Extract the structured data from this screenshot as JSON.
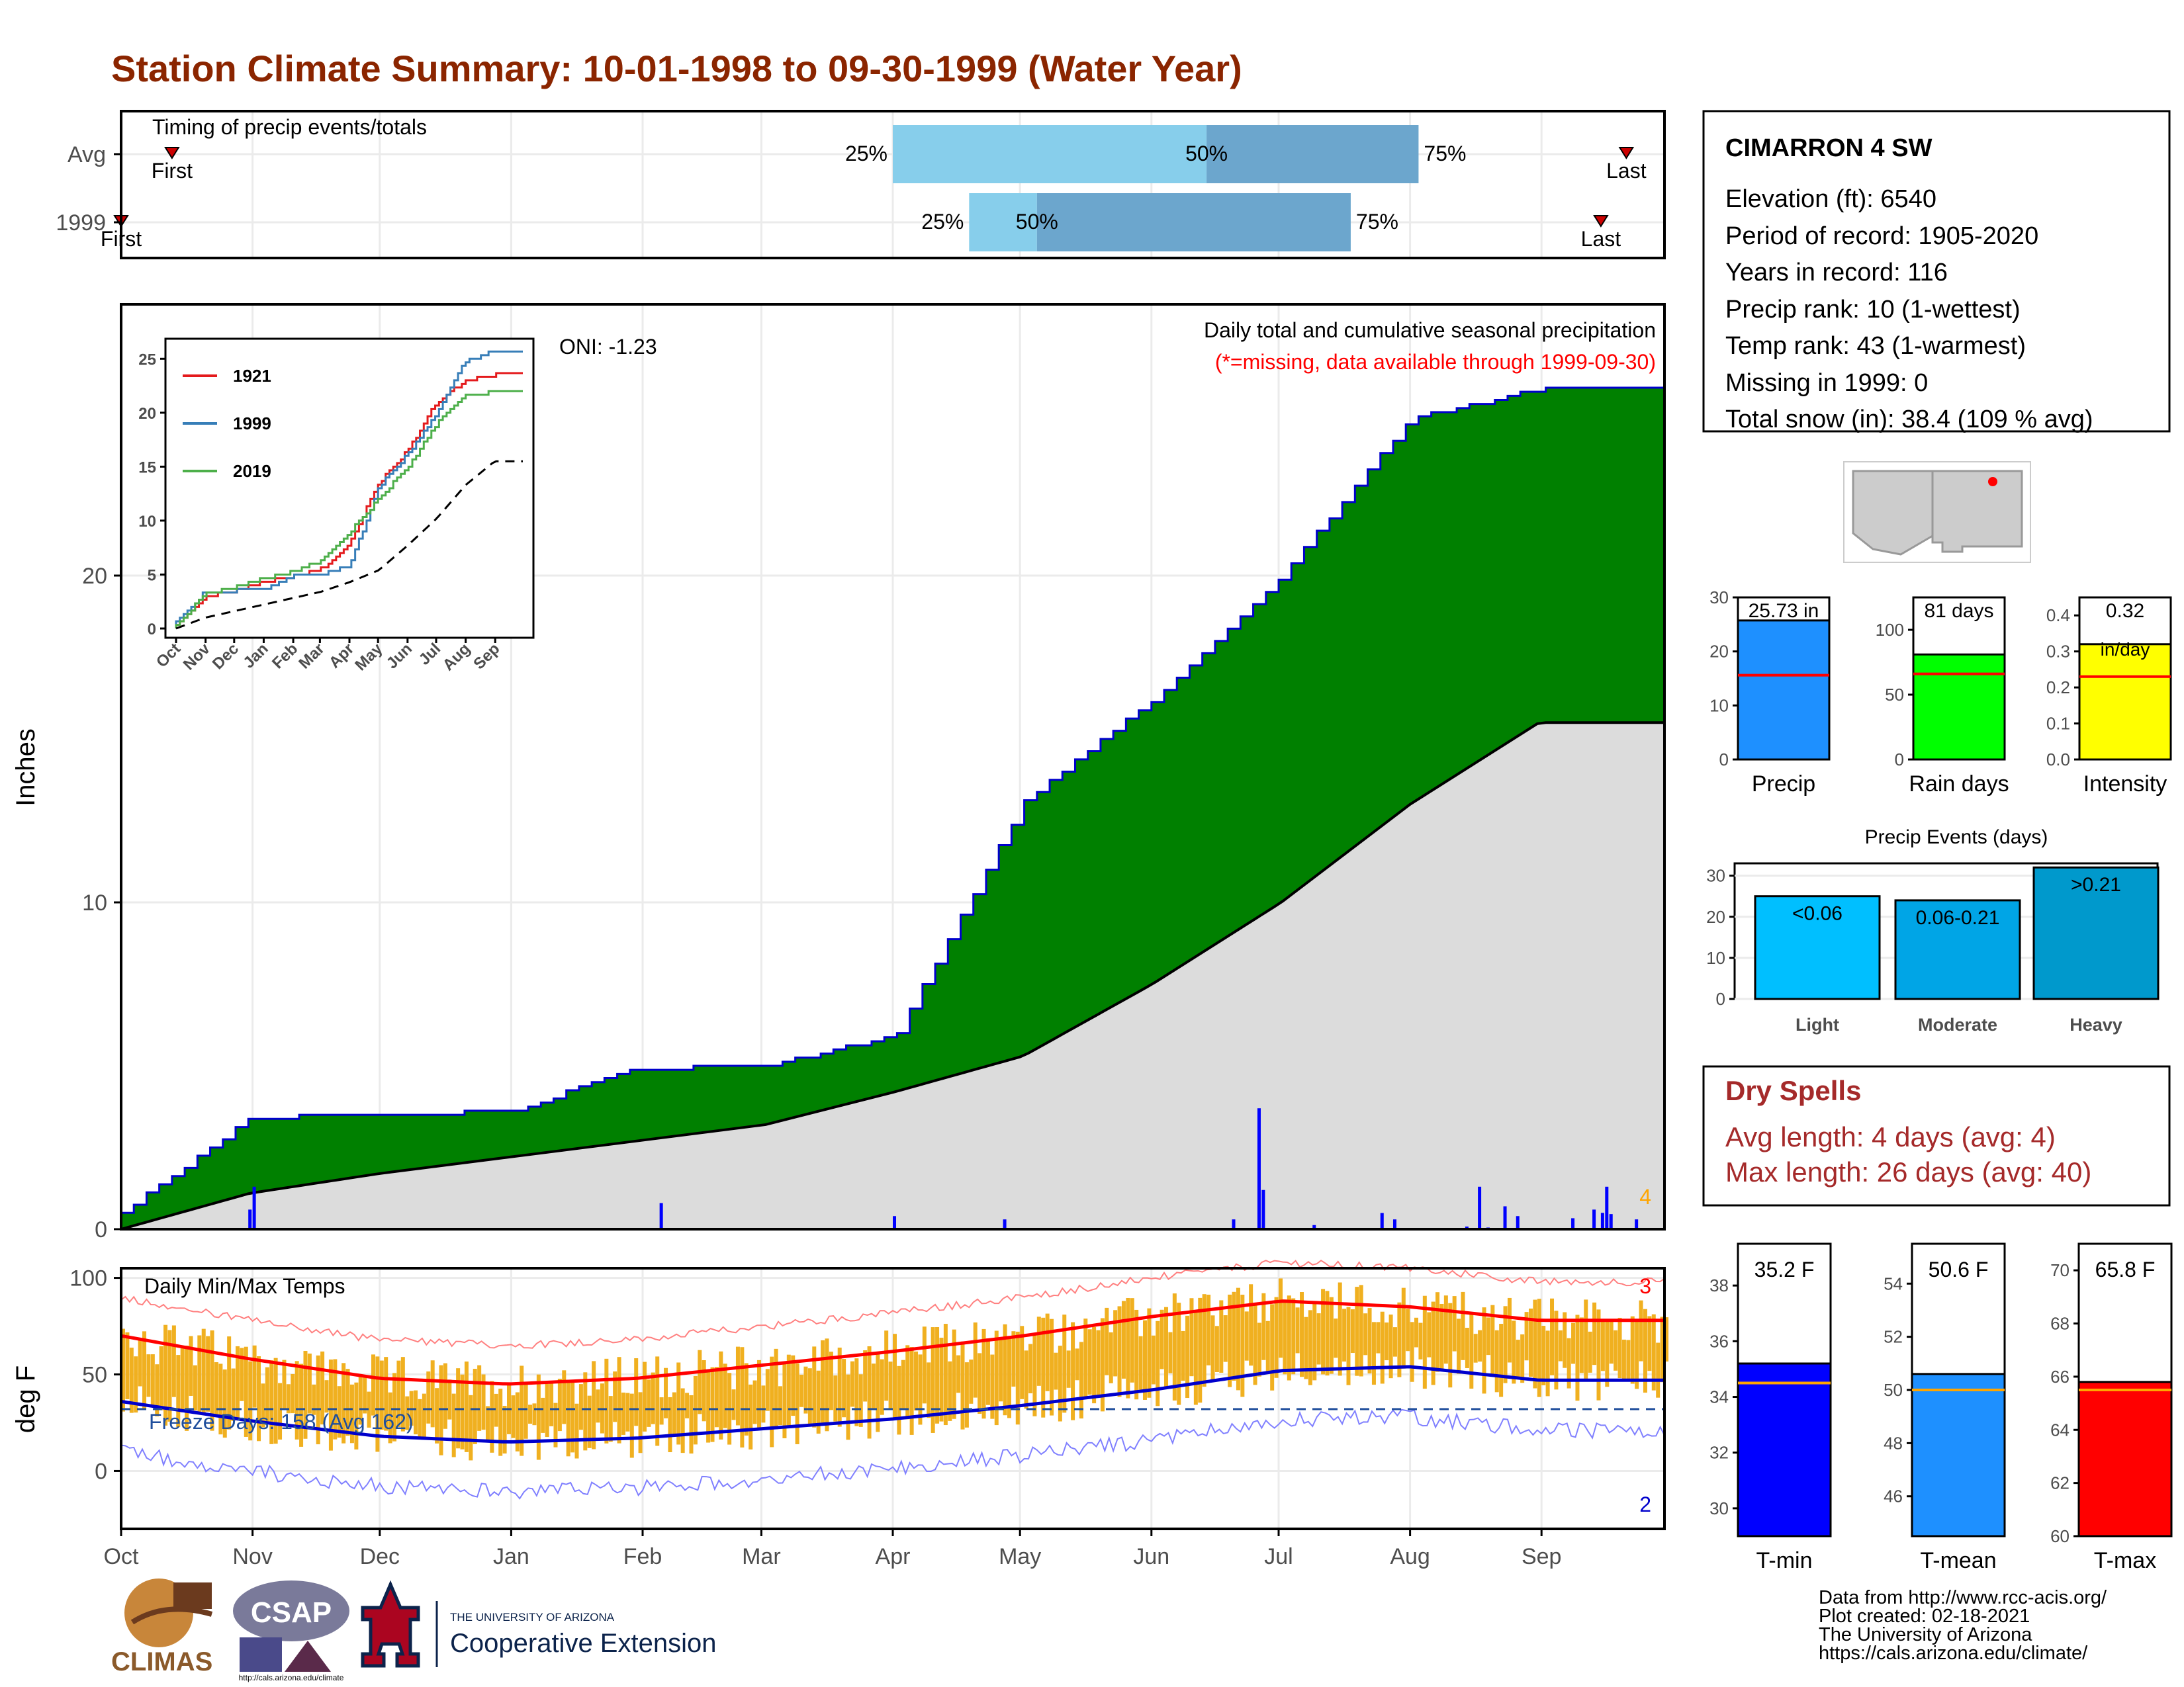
{
  "title": "Station Climate Summary: 10-01-1998 to 09-30-1999 (Water Year)",
  "colors": {
    "title": "#8b2500",
    "cumulative_year": "#008000",
    "cumulative_avg": "#dcdcdc",
    "daily_precip": "#0000ff",
    "temp_bars": "#f0b020",
    "avg_max": "#ff0000",
    "avg_min": "#0000cc",
    "dry_spells": "#a52a2a"
  },
  "timing_panel": {
    "title": "Timing of precip events/totals",
    "rows": [
      {
        "label": "Avg",
        "first_label": "First",
        "last_label": "Last",
        "q25": "25%",
        "q50": "50%",
        "q75": "75%",
        "first_day": 12,
        "last_day": 355,
        "q25_day": 182,
        "q50_day": 256,
        "q75_day": 306
      },
      {
        "label": "1999",
        "first_label": "First",
        "last_label": "Last",
        "q25": "25%",
        "q50": "50%",
        "q75": "75%",
        "first_day": 0,
        "last_day": 349,
        "q25_day": 200,
        "q50_day": 216,
        "q75_day": 290
      }
    ]
  },
  "precip_panel": {
    "ylabel": "Inches",
    "note": "Daily total and cumulative seasonal precipitation",
    "missing_note": "(*=missing, data available through 1999-09-30)",
    "oni": "ONI: -1.23",
    "corner_count": "4",
    "yticks": [
      "0",
      "10",
      "20"
    ]
  },
  "inset": {
    "yticks": [
      "0",
      "5",
      "10",
      "15",
      "20",
      "25"
    ],
    "xticks": [
      "Oct",
      "Nov",
      "Dec",
      "Jan",
      "Feb",
      "Mar",
      "Apr",
      "May",
      "Jun",
      "Jul",
      "Aug",
      "Sep"
    ],
    "legend": [
      {
        "name": "1921",
        "color": "#e41a1c"
      },
      {
        "name": "1999",
        "color": "#377eb8"
      },
      {
        "name": "2019",
        "color": "#4daf4a"
      }
    ]
  },
  "temp_panel": {
    "ylabel": "deg F",
    "title": "Daily Min/Max Temps",
    "freeze_days": "Freeze Days: 158 (Avg 162)",
    "top_count": "3",
    "bottom_count": "2",
    "yticks": [
      "0",
      "50",
      "100"
    ]
  },
  "months": [
    "Oct",
    "Nov",
    "Dec",
    "Jan",
    "Feb",
    "Mar",
    "Apr",
    "May",
    "Jun",
    "Jul",
    "Aug",
    "Sep"
  ],
  "station": {
    "name": "CIMARRON 4 SW",
    "lines": [
      "Elevation (ft): 6540",
      "Period of record: 1905-2020",
      "Years in record: 116",
      "Precip rank: 10 (1-wettest)",
      "Temp rank: 43 (1-warmest)",
      "Missing in 1999: 0",
      "Total snow (in): 38.4 (109 % avg)"
    ]
  },
  "summary_bars": [
    {
      "label": "Precip",
      "value_text": "25.73 in",
      "value": 25.73,
      "avg": 15.6,
      "max": 30,
      "ticks": [
        "0",
        "10",
        "20",
        "30"
      ],
      "color": "#1e90ff"
    },
    {
      "label": "Rain days",
      "value_text": "81 days",
      "value": 81,
      "avg": 66,
      "max": 125,
      "ticks": [
        "0",
        "50",
        "100"
      ],
      "color": "#00ff00"
    },
    {
      "label": "Intensity",
      "value_text": "0.32",
      "value_text2": "in/day",
      "value": 0.32,
      "avg": 0.23,
      "max": 0.45,
      "ticks": [
        "0.0",
        "0.1",
        "0.2",
        "0.3",
        "0.4"
      ],
      "color": "#ffff00"
    }
  ],
  "precip_events": {
    "title": "Precip Events (days)",
    "ticks": [
      "0",
      "10",
      "20",
      "30"
    ],
    "categories": [
      "Light",
      "Moderate",
      "Heavy"
    ],
    "bar_labels": [
      "<0.06",
      "0.06-0.21",
      ">0.21"
    ],
    "values": [
      25,
      24,
      32
    ]
  },
  "dry_spells": {
    "title": "Dry Spells",
    "avg": "Avg length: 4 days (avg: 4)",
    "max": "Max length: 26 days (avg: 40)"
  },
  "temp_bars": [
    {
      "label": "T-min",
      "value_text": "35.2 F",
      "value": 35.2,
      "avg": 34.5,
      "min": 29,
      "max": 39.5,
      "ticks": [
        "30",
        "32",
        "34",
        "36",
        "38"
      ],
      "color": "#0000ff"
    },
    {
      "label": "T-mean",
      "value_text": "50.6 F",
      "value": 50.6,
      "avg": 50.0,
      "min": 44.5,
      "max": 55.5,
      "ticks": [
        "46",
        "48",
        "50",
        "52",
        "54"
      ],
      "color": "#1e90ff"
    },
    {
      "label": "T-max",
      "value_text": "65.8 F",
      "value": 65.8,
      "avg": 65.5,
      "min": 60,
      "max": 71,
      "ticks": [
        "60",
        "62",
        "64",
        "66",
        "68",
        "70"
      ],
      "color": "#ff0000"
    }
  ],
  "footer": {
    "lines": [
      "Data from http://www.rcc-acis.org/",
      "Plot created: 02-18-2021",
      "The University of Arizona",
      "https://cals.arizona.edu/climate/"
    ],
    "logos": {
      "climas": "CLIMAS",
      "csap": "CSAP",
      "csap_url": "http://cals.arizona.edu/climate",
      "ua_small": "THE UNIVERSITY OF ARIZONA",
      "ua_big": "Cooperative Extension"
    }
  },
  "chart_data": [
    {
      "type": "bar",
      "title": "Timing of precip events/totals",
      "categories": [
        "Avg",
        "1999"
      ],
      "series": [
        {
          "name": "25%",
          "values": [
            182,
            200
          ]
        },
        {
          "name": "50%",
          "values": [
            256,
            216
          ]
        },
        {
          "name": "75%",
          "values": [
            306,
            290
          ]
        }
      ]
    },
    {
      "type": "area",
      "title": "Daily total and cumulative seasonal precipitation",
      "ylabel": "Inches",
      "ylim": [
        0,
        28
      ],
      "x": [
        "Oct",
        "Nov",
        "Dec",
        "Jan",
        "Feb",
        "Mar",
        "Apr",
        "May",
        "Jun",
        "Jul",
        "Aug",
        "Sep"
      ],
      "series": [
        {
          "values": [
            0.5,
            3.4,
            3.5,
            3.6,
            4.9,
            5.0,
            5.9,
            13.1,
            16.2,
            20.0,
            24.8,
            25.7
          ]
        },
        {
          "values": [
            0.0,
            1.1,
            1.7,
            2.2,
            2.7,
            3.2,
            4.2,
            5.3,
            7.5,
            10.0,
            13.0,
            15.5
          ]
        }
      ]
    },
    {
      "type": "line",
      "ylim": [
        0,
        26
      ],
      "x": [
        "Oct",
        "Nov",
        "Dec",
        "Jan",
        "Feb",
        "Mar",
        "Apr",
        "May",
        "Jun",
        "Jul",
        "Aug",
        "Sep"
      ],
      "series": [
        {
          "name": "1921",
          "values": [
            0.2,
            3.0,
            3.5,
            4.3,
            4.8,
            5.5,
            8.0,
            13.5,
            16.5,
            21.0,
            23.0,
            23.5
          ]
        },
        {
          "name": "1999",
          "values": [
            0.5,
            3.4,
            3.5,
            3.6,
            4.9,
            5.0,
            5.9,
            13.1,
            16.2,
            20.0,
            24.8,
            25.7
          ]
        },
        {
          "name": "2019",
          "values": [
            0.3,
            3.2,
            3.8,
            4.6,
            5.2,
            6.3,
            9.0,
            12.0,
            15.0,
            19.0,
            21.5,
            22.0
          ]
        },
        {
          "values": [
            0.0,
            1.0,
            1.6,
            2.2,
            2.8,
            3.4,
            4.3,
            5.4,
            7.7,
            10.2,
            13.3,
            15.5
          ]
        }
      ]
    },
    {
      "type": "bar",
      "title": "Daily Min/Max Temps",
      "ylabel": "deg F",
      "ylim": [
        -30,
        105
      ],
      "x": [
        "Oct",
        "Nov",
        "Dec",
        "Jan",
        "Feb",
        "Mar",
        "Apr",
        "May",
        "Jun",
        "Jul",
        "Aug",
        "Sep"
      ],
      "series": [
        {
          "values": [
            70,
            58,
            48,
            45,
            48,
            55,
            62,
            70,
            80,
            88,
            85,
            78
          ]
        },
        {
          "values": [
            36,
            26,
            18,
            15,
            17,
            22,
            27,
            34,
            42,
            52,
            54,
            47
          ]
        }
      ]
    },
    {
      "type": "bar",
      "categories": [
        "Precip",
        "Rain days",
        "Intensity"
      ],
      "values": [
        25.73,
        81,
        0.32
      ]
    },
    {
      "type": "bar",
      "title": "Precip Events (days)",
      "categories": [
        "Light",
        "Moderate",
        "Heavy"
      ],
      "values": [
        25,
        24,
        32
      ]
    },
    {
      "type": "bar",
      "categories": [
        "T-min",
        "T-mean",
        "T-max"
      ],
      "values": [
        35.2,
        50.6,
        65.8
      ]
    }
  ]
}
